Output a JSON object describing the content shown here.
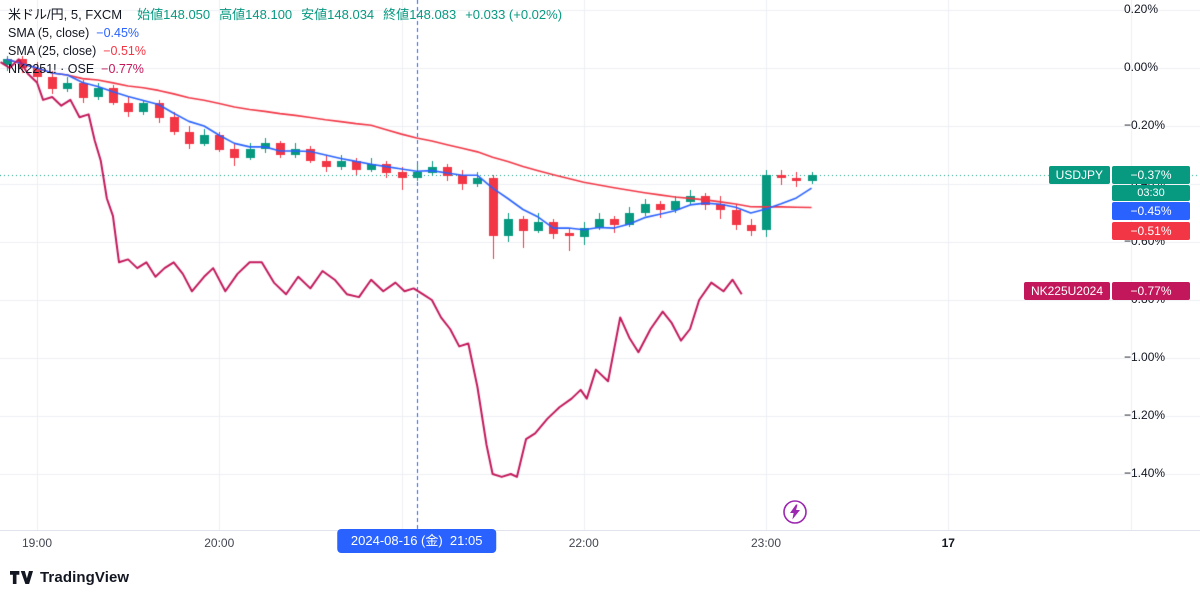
{
  "legend": {
    "symbol_title": "米ドル/円, 5, FXCM",
    "ohlc": [
      {
        "label": "始値",
        "value": "148.050"
      },
      {
        "label": "高値",
        "value": "148.100"
      },
      {
        "label": "安値",
        "value": "148.034"
      },
      {
        "label": "終値",
        "value": "148.083"
      }
    ],
    "change": "+0.033 (+0.02%)",
    "indicators": [
      {
        "label": "SMA (5, close)",
        "value": "−0.45%",
        "color": "#2962ff"
      },
      {
        "label": "SMA (25, close)",
        "value": "−0.51%",
        "color": "#f23645"
      },
      {
        "label": "NK2251! · OSE",
        "value": "−0.77%",
        "color": "#c2185b"
      }
    ]
  },
  "price_scale": {
    "badges": {
      "usdjpy": {
        "name": "USDJPY",
        "value": "−0.37%",
        "countdown": "03:30",
        "color": "#089981",
        "pct": -0.37
      },
      "sma5": {
        "value": "−0.45%",
        "color": "#2962ff",
        "pct": -0.45
      },
      "sma25": {
        "value": "−0.51%",
        "color": "#f23645",
        "pct": -0.51
      },
      "nk225": {
        "name": "NK225U2024",
        "value": "−0.77%",
        "color": "#c2185b",
        "pct": -0.77
      }
    }
  },
  "time_scale": {
    "labels": [
      {
        "m": 0,
        "text": "19:00",
        "bold": false
      },
      {
        "m": 60,
        "text": "20:00",
        "bold": false
      },
      {
        "m": 120,
        "text": "21:00",
        "bold": false
      },
      {
        "m": 180,
        "text": "22:00",
        "bold": false
      },
      {
        "m": 240,
        "text": "23:00",
        "bold": false
      },
      {
        "m": 300,
        "text": "17",
        "bold": true
      }
    ]
  },
  "tooltip": {
    "text": "2024-08-16 (金)  21:05",
    "m": 125,
    "color": "#2962ff"
  },
  "footer": {
    "logo_text": "TradingView"
  },
  "chart_data": {
    "type": "candlestick",
    "title": "米ドル/円, 5, FXCM (percent change) with SMA(5), SMA(25) and NK2251! OSE compare",
    "x_unit": "minutes from 19:00",
    "y_unit": "percent change",
    "ylim": [
      -1.55,
      0.27
    ],
    "grid": true,
    "price_line": -0.37,
    "crosshair_time": 125,
    "x_gridlines": [
      0,
      60,
      120,
      180,
      240,
      300,
      360
    ],
    "y_ticks": [
      {
        "v": 0.2,
        "label": "0.20%"
      },
      {
        "v": 0.0,
        "label": "0.00%"
      },
      {
        "v": -0.2,
        "label": "−0.20%"
      },
      {
        "v": -0.4,
        "label": "−0.40%"
      },
      {
        "v": -0.6,
        "label": "−0.60%"
      },
      {
        "v": -0.8,
        "label": "−0.80%"
      },
      {
        "v": -1.0,
        "label": "−1.00%"
      },
      {
        "v": -1.2,
        "label": "−1.20%"
      },
      {
        "v": -1.4,
        "label": "−1.40%"
      }
    ],
    "sma_periods": [
      5,
      25
    ],
    "candles": [
      [
        -10,
        0.01,
        0.04,
        -0.01,
        0.03
      ],
      [
        -5,
        0.03,
        0.04,
        -0.02,
        0.0
      ],
      [
        0,
        0.0,
        0.02,
        -0.05,
        -0.03
      ],
      [
        5,
        -0.03,
        -0.01,
        -0.09,
        -0.07
      ],
      [
        10,
        -0.07,
        -0.03,
        -0.08,
        -0.05
      ],
      [
        15,
        -0.05,
        -0.04,
        -0.12,
        -0.1
      ],
      [
        20,
        -0.1,
        -0.05,
        -0.11,
        -0.07
      ],
      [
        25,
        -0.07,
        -0.06,
        -0.13,
        -0.12
      ],
      [
        30,
        -0.12,
        -0.1,
        -0.17,
        -0.15
      ],
      [
        35,
        -0.15,
        -0.11,
        -0.16,
        -0.12
      ],
      [
        40,
        -0.12,
        -0.11,
        -0.19,
        -0.17
      ],
      [
        45,
        -0.17,
        -0.15,
        -0.23,
        -0.22
      ],
      [
        50,
        -0.22,
        -0.2,
        -0.28,
        -0.26
      ],
      [
        55,
        -0.26,
        -0.21,
        -0.27,
        -0.23
      ],
      [
        60,
        -0.23,
        -0.22,
        -0.29,
        -0.28
      ],
      [
        65,
        -0.28,
        -0.26,
        -0.34,
        -0.31
      ],
      [
        70,
        -0.31,
        -0.26,
        -0.32,
        -0.28
      ],
      [
        75,
        -0.28,
        -0.24,
        -0.29,
        -0.26
      ],
      [
        80,
        -0.26,
        -0.25,
        -0.31,
        -0.3
      ],
      [
        85,
        -0.3,
        -0.26,
        -0.31,
        -0.28
      ],
      [
        90,
        -0.28,
        -0.27,
        -0.33,
        -0.32
      ],
      [
        95,
        -0.32,
        -0.3,
        -0.36,
        -0.34
      ],
      [
        100,
        -0.34,
        -0.3,
        -0.35,
        -0.32
      ],
      [
        105,
        -0.32,
        -0.31,
        -0.37,
        -0.35
      ],
      [
        110,
        -0.35,
        -0.31,
        -0.36,
        -0.33
      ],
      [
        115,
        -0.33,
        -0.32,
        -0.38,
        -0.36
      ],
      [
        120,
        -0.36,
        -0.34,
        -0.42,
        -0.38
      ],
      [
        125,
        -0.38,
        -0.33,
        -0.39,
        -0.36
      ],
      [
        130,
        -0.36,
        -0.32,
        -0.37,
        -0.34
      ],
      [
        135,
        -0.34,
        -0.33,
        -0.39,
        -0.37
      ],
      [
        140,
        -0.37,
        -0.35,
        -0.42,
        -0.4
      ],
      [
        145,
        -0.4,
        -0.36,
        -0.41,
        -0.38
      ],
      [
        150,
        -0.38,
        -0.37,
        -0.66,
        -0.58
      ],
      [
        155,
        -0.58,
        -0.5,
        -0.6,
        -0.52
      ],
      [
        160,
        -0.52,
        -0.51,
        -0.62,
        -0.56
      ],
      [
        165,
        -0.56,
        -0.5,
        -0.57,
        -0.53
      ],
      [
        170,
        -0.53,
        -0.52,
        -0.59,
        -0.57
      ],
      [
        175,
        -0.57,
        -0.55,
        -0.63,
        -0.58
      ],
      [
        180,
        -0.58,
        -0.53,
        -0.61,
        -0.55
      ],
      [
        185,
        -0.55,
        -0.5,
        -0.56,
        -0.52
      ],
      [
        190,
        -0.52,
        -0.51,
        -0.57,
        -0.54
      ],
      [
        195,
        -0.54,
        -0.48,
        -0.55,
        -0.5
      ],
      [
        200,
        -0.5,
        -0.45,
        -0.51,
        -0.47
      ],
      [
        205,
        -0.47,
        -0.46,
        -0.52,
        -0.49
      ],
      [
        210,
        -0.49,
        -0.44,
        -0.5,
        -0.46
      ],
      [
        215,
        -0.46,
        -0.42,
        -0.47,
        -0.44
      ],
      [
        220,
        -0.44,
        -0.43,
        -0.49,
        -0.47
      ],
      [
        225,
        -0.47,
        -0.44,
        -0.52,
        -0.49
      ],
      [
        230,
        -0.49,
        -0.47,
        -0.56,
        -0.54
      ],
      [
        235,
        -0.54,
        -0.52,
        -0.58,
        -0.56
      ],
      [
        240,
        -0.56,
        -0.35,
        -0.58,
        -0.37
      ],
      [
        245,
        -0.37,
        -0.35,
        -0.4,
        -0.38
      ],
      [
        250,
        -0.38,
        -0.36,
        -0.41,
        -0.39
      ],
      [
        255,
        -0.39,
        -0.36,
        -0.4,
        -0.37
      ]
    ],
    "series": [
      {
        "name": "NK2251! OSE",
        "type": "line",
        "color": "#c2185b",
        "points": [
          [
            -12,
            0.02
          ],
          [
            -9,
            0.0
          ],
          [
            -6,
            0.03
          ],
          [
            -3,
            -0.02
          ],
          [
            0,
            -0.05
          ],
          [
            2,
            -0.11
          ],
          [
            5,
            -0.1
          ],
          [
            8,
            -0.13
          ],
          [
            11,
            -0.11
          ],
          [
            14,
            -0.17
          ],
          [
            17,
            -0.16
          ],
          [
            19,
            -0.25
          ],
          [
            21,
            -0.32
          ],
          [
            23,
            -0.45
          ],
          [
            25,
            -0.51
          ],
          [
            27,
            -0.67
          ],
          [
            30,
            -0.66
          ],
          [
            33,
            -0.69
          ],
          [
            36,
            -0.67
          ],
          [
            39,
            -0.72
          ],
          [
            42,
            -0.69
          ],
          [
            45,
            -0.67
          ],
          [
            48,
            -0.71
          ],
          [
            51,
            -0.77
          ],
          [
            55,
            -0.72
          ],
          [
            58,
            -0.69
          ],
          [
            62,
            -0.77
          ],
          [
            66,
            -0.71
          ],
          [
            70,
            -0.67
          ],
          [
            74,
            -0.67
          ],
          [
            78,
            -0.74
          ],
          [
            82,
            -0.78
          ],
          [
            86,
            -0.72
          ],
          [
            90,
            -0.76
          ],
          [
            94,
            -0.7
          ],
          [
            98,
            -0.73
          ],
          [
            102,
            -0.78
          ],
          [
            106,
            -0.79
          ],
          [
            110,
            -0.73
          ],
          [
            114,
            -0.77
          ],
          [
            118,
            -0.74
          ],
          [
            121,
            -0.77
          ],
          [
            124,
            -0.76
          ],
          [
            127,
            -0.78
          ],
          [
            130,
            -0.8
          ],
          [
            133,
            -0.86
          ],
          [
            136,
            -0.9
          ],
          [
            139,
            -0.96
          ],
          [
            142,
            -0.95
          ],
          [
            145,
            -1.1
          ],
          [
            148,
            -1.3
          ],
          [
            150,
            -1.4
          ],
          [
            153,
            -1.41
          ],
          [
            156,
            -1.4
          ],
          [
            158,
            -1.41
          ],
          [
            161,
            -1.28
          ],
          [
            164,
            -1.26
          ],
          [
            168,
            -1.21
          ],
          [
            172,
            -1.17
          ],
          [
            176,
            -1.14
          ],
          [
            179,
            -1.11
          ],
          [
            181,
            -1.14
          ],
          [
            184,
            -1.04
          ],
          [
            188,
            -1.08
          ],
          [
            192,
            -0.86
          ],
          [
            195,
            -0.93
          ],
          [
            198,
            -0.98
          ],
          [
            202,
            -0.9
          ],
          [
            206,
            -0.84
          ],
          [
            209,
            -0.88
          ],
          [
            212,
            -0.94
          ],
          [
            215,
            -0.9
          ],
          [
            218,
            -0.8
          ],
          [
            222,
            -0.74
          ],
          [
            226,
            -0.77
          ],
          [
            229,
            -0.73
          ],
          [
            232,
            -0.78
          ]
        ]
      }
    ],
    "colors": {
      "up": "#089981",
      "down": "#f23645",
      "sma5": "#2962ff",
      "sma25": "#f23645",
      "grid": "#eceff5",
      "crosshair": "#2962ff"
    }
  }
}
